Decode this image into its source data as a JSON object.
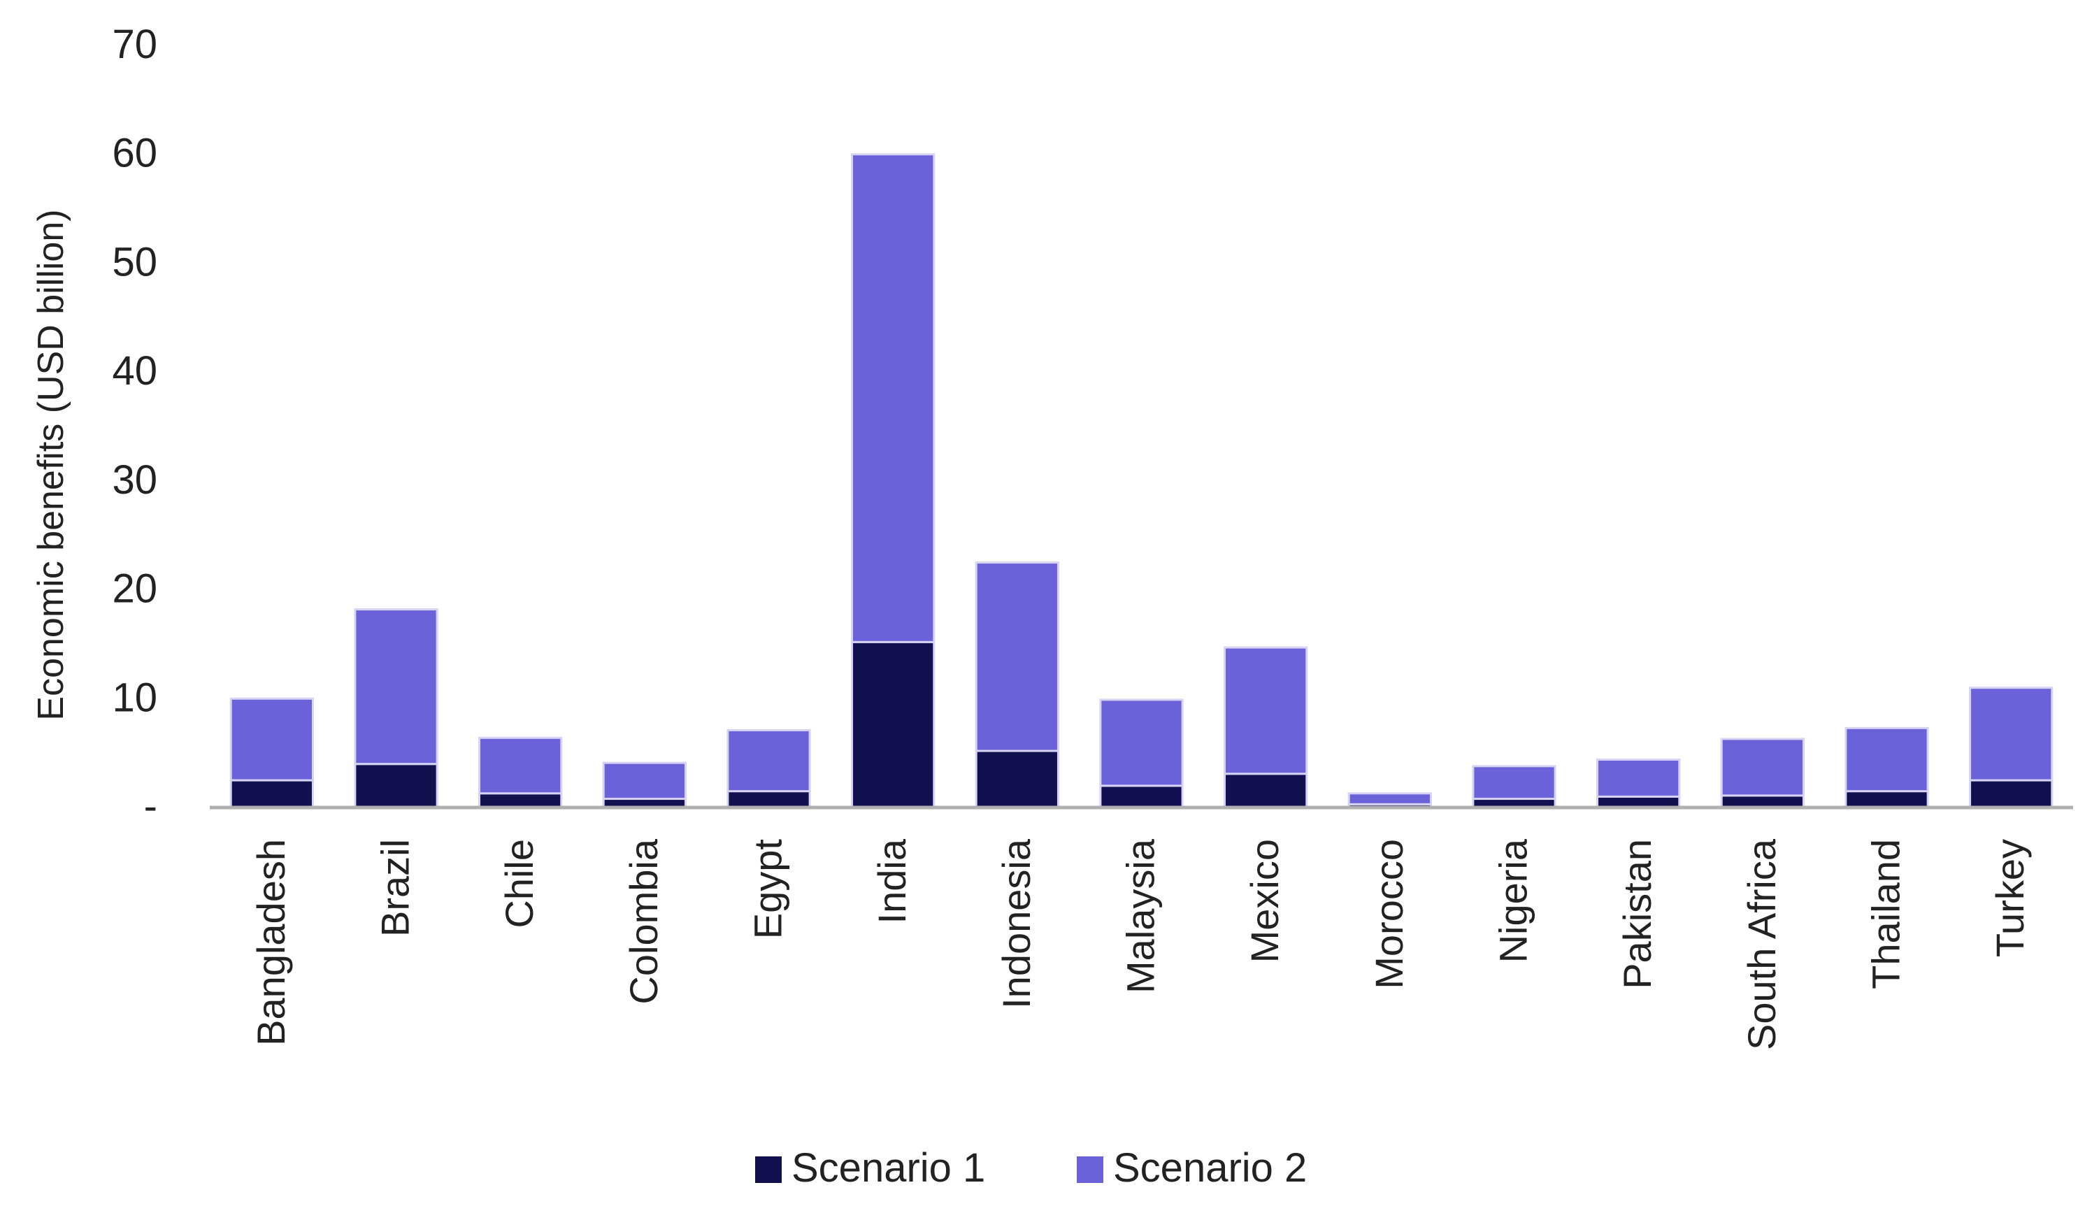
{
  "chart_data": {
    "type": "bar",
    "stacked": true,
    "ylabel": "Economic benefits (USD billion)",
    "xlabel": "",
    "ylim": [
      0,
      70
    ],
    "yticks": [
      {
        "value": 0,
        "label": "-"
      },
      {
        "value": 10,
        "label": "10"
      },
      {
        "value": 20,
        "label": "20"
      },
      {
        "value": 30,
        "label": "30"
      },
      {
        "value": 40,
        "label": "40"
      },
      {
        "value": 50,
        "label": "50"
      },
      {
        "value": 60,
        "label": "60"
      },
      {
        "value": 70,
        "label": "70"
      }
    ],
    "grid": false,
    "legend_position": "bottom",
    "categories": [
      "Bangladesh",
      "Brazil",
      "Chile",
      "Colombia",
      "Egypt",
      "India",
      "Indonesia",
      "Malaysia",
      "Mexico",
      "Morocco",
      "Nigeria",
      "Pakistan",
      "South Africa",
      "Thailand",
      "Turkey"
    ],
    "series": [
      {
        "name": "Scenario 1",
        "color": "#12104f",
        "values": [
          2.5,
          4.0,
          1.3,
          0.8,
          1.5,
          15.2,
          5.2,
          2.0,
          3.1,
          0.3,
          0.8,
          1.0,
          1.1,
          1.5,
          2.5
        ]
      },
      {
        "name": "Scenario 2",
        "color": "#6b62d9",
        "values": [
          7.5,
          14.2,
          5.1,
          3.3,
          5.6,
          44.8,
          17.3,
          7.9,
          11.6,
          1.0,
          3.0,
          3.4,
          5.2,
          5.8,
          8.5
        ]
      }
    ]
  }
}
